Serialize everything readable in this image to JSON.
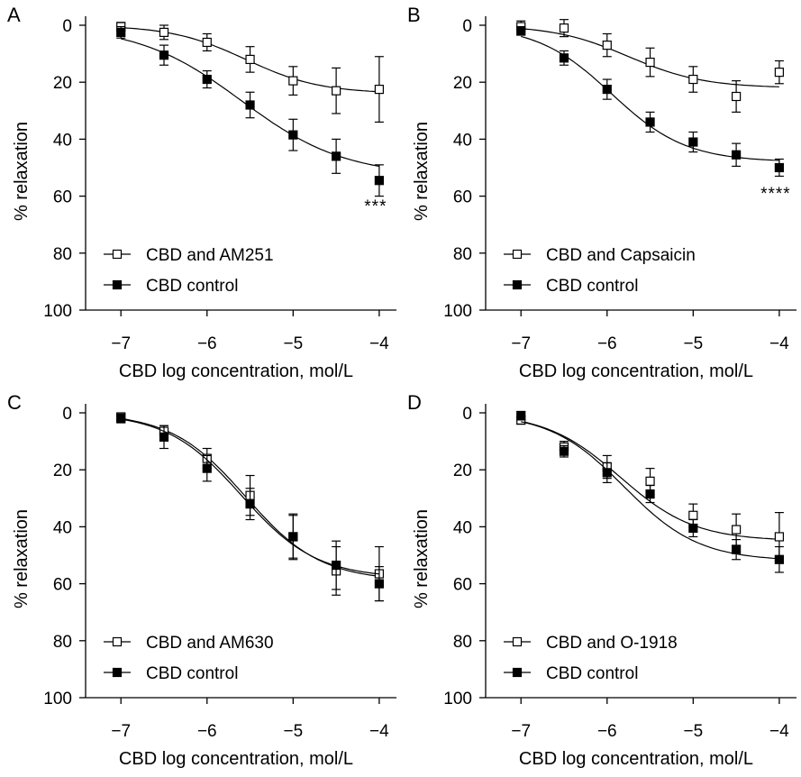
{
  "chart_data": [
    {
      "panel": "A",
      "type": "line",
      "xlabel": "CBD log concentration, mol/L",
      "ylabel": "% relaxation",
      "x": [
        -7,
        -6.5,
        -6,
        -5.5,
        -5,
        -4.5,
        -4
      ],
      "xticks": [
        -7,
        -6,
        -5,
        -4
      ],
      "xtick_labels": [
        "−7",
        "−6",
        "−5",
        "−4"
      ],
      "xlim": [
        -7.4,
        -3.8
      ],
      "ylim": [
        0,
        100
      ],
      "y_inverted": true,
      "yticks": [
        0,
        20,
        40,
        60,
        80,
        100
      ],
      "ytick_labels": [
        "0",
        "20",
        "40",
        "60",
        "80",
        "100"
      ],
      "series": [
        {
          "name": "CBD and AM251",
          "marker": "open-square",
          "values": [
            0.5,
            2.5,
            6,
            12,
            19.5,
            23,
            22.5
          ],
          "errors": [
            1.5,
            2.5,
            3,
            4.5,
            5,
            8,
            11.5
          ],
          "fit": {
            "bottom": 0,
            "top": 24,
            "logEC50": -5.55,
            "hill": 1.0
          }
        },
        {
          "name": "CBD control",
          "marker": "filled-square",
          "values": [
            2.5,
            10.5,
            19,
            28,
            38.5,
            46,
            54.5
          ],
          "errors": [
            2,
            3.5,
            3,
            4.5,
            5.5,
            6,
            5.5
          ],
          "fit": {
            "bottom": 0,
            "top": 53,
            "logEC50": -5.6,
            "hill": 0.72
          }
        }
      ],
      "annotation": "***",
      "legend_position": "bottom-left"
    },
    {
      "panel": "B",
      "type": "line",
      "xlabel": "CBD log concentration, mol/L",
      "ylabel": "% relaxation",
      "x": [
        -7,
        -6.5,
        -6,
        -5.5,
        -5,
        -4.5,
        -4
      ],
      "xticks": [
        -7,
        -6,
        -5,
        -4
      ],
      "xtick_labels": [
        "−7",
        "−6",
        "−5",
        "−4"
      ],
      "xlim": [
        -7.4,
        -3.8
      ],
      "ylim": [
        0,
        100
      ],
      "y_inverted": true,
      "yticks": [
        0,
        20,
        40,
        60,
        80,
        100
      ],
      "ytick_labels": [
        "0",
        "20",
        "40",
        "60",
        "80",
        "100"
      ],
      "series": [
        {
          "name": "CBD and Capsaicin",
          "marker": "open-square",
          "values": [
            0.5,
            1,
            7,
            13,
            19,
            25,
            16.5
          ],
          "errors": [
            2,
            3,
            4,
            5,
            4.5,
            5.5,
            4
          ],
          "fit": {
            "bottom": 0,
            "top": 22,
            "logEC50": -5.75,
            "hill": 1.0
          }
        },
        {
          "name": "CBD control",
          "marker": "filled-square",
          "values": [
            2,
            11.5,
            22.5,
            34,
            41,
            45.5,
            50
          ],
          "errors": [
            1.5,
            2.5,
            3.5,
            3.5,
            3.5,
            4,
            3
          ],
          "fit": {
            "bottom": 0,
            "top": 48,
            "logEC50": -5.95,
            "hill": 1.0
          }
        }
      ],
      "annotation": "****",
      "legend_position": "bottom-left"
    },
    {
      "panel": "C",
      "type": "line",
      "xlabel": "CBD log concentration, mol/L",
      "ylabel": "% relaxation",
      "x": [
        -7,
        -6.5,
        -6,
        -5.5,
        -5,
        -4.5,
        -4
      ],
      "xticks": [
        -7,
        -6,
        -5,
        -4
      ],
      "xtick_labels": [
        "−7",
        "−6",
        "−5",
        "−4"
      ],
      "xlim": [
        -7.4,
        -3.8
      ],
      "ylim": [
        0,
        100
      ],
      "y_inverted": true,
      "yticks": [
        0,
        20,
        40,
        60,
        80,
        100
      ],
      "ytick_labels": [
        "0",
        "20",
        "40",
        "60",
        "80",
        "100"
      ],
      "series": [
        {
          "name": "CBD and AM630",
          "marker": "open-square",
          "values": [
            1.5,
            6.5,
            16,
            29,
            43.5,
            55.5,
            56.5
          ],
          "errors": [
            1.5,
            2,
            3.5,
            7,
            7.5,
            8.5,
            9.5
          ],
          "fit": {
            "bottom": 0,
            "top": 59,
            "logEC50": -5.55,
            "hill": 1.0
          }
        },
        {
          "name": "CBD control",
          "marker": "filled-square",
          "values": [
            2,
            8.5,
            19.5,
            32,
            43.5,
            53.5,
            60
          ],
          "errors": [
            1.5,
            4,
            4.5,
            5.5,
            8,
            8.5,
            6
          ],
          "fit": {
            "bottom": 0,
            "top": 58,
            "logEC50": -5.6,
            "hill": 1.0
          }
        }
      ],
      "legend_position": "bottom-left"
    },
    {
      "panel": "D",
      "type": "line",
      "xlabel": "CBD log concentration, mol/L",
      "ylabel": "% relaxation",
      "x": [
        -7,
        -6.5,
        -6,
        -5.5,
        -5,
        -4.5,
        -4
      ],
      "xticks": [
        -7,
        -6,
        -5,
        -4
      ],
      "xtick_labels": [
        "−7",
        "−6",
        "−5",
        "−4"
      ],
      "xlim": [
        -7.4,
        -3.8
      ],
      "ylim": [
        0,
        100
      ],
      "y_inverted": true,
      "yticks": [
        0,
        20,
        40,
        60,
        80,
        100
      ],
      "ytick_labels": [
        "0",
        "20",
        "40",
        "60",
        "80",
        "100"
      ],
      "series": [
        {
          "name": "CBD and O-1918",
          "marker": "open-square",
          "values": [
            2.5,
            12,
            19,
            24,
            36,
            41,
            43.5
          ],
          "errors": [
            1.5,
            2,
            4,
            4.5,
            4,
            5.5,
            8.5
          ],
          "fit": {
            "bottom": 0,
            "top": 45,
            "logEC50": -5.85,
            "hill": 1.0
          }
        },
        {
          "name": "CBD control",
          "marker": "filled-square",
          "values": [
            1,
            13.5,
            21,
            28.5,
            40.5,
            48,
            51.5
          ],
          "errors": [
            1.5,
            2,
            3.5,
            3,
            3,
            3.5,
            4.5
          ],
          "fit": {
            "bottom": 0,
            "top": 52,
            "logEC50": -5.8,
            "hill": 1.0
          }
        }
      ],
      "legend_position": "bottom-left"
    }
  ]
}
